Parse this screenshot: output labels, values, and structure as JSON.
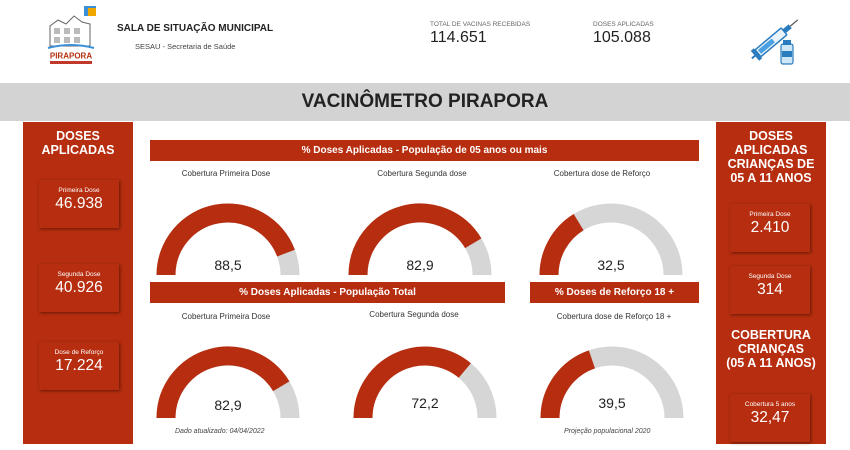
{
  "header": {
    "logo_text": "PIRAPORA",
    "org_title": "SALA DE SITUAÇÃO MUNICIPAL",
    "org_subtitle": "SESAU - Secretaria de Saúde",
    "kpis": [
      {
        "label": "TOTAL DE VACINAS RECEBIDAS",
        "value": "114.651"
      },
      {
        "label": "DOSES APLICADAS",
        "value": "105.088"
      }
    ],
    "icon": "syringe-vaccine-icon"
  },
  "banner": {
    "title": "VACINÔMETRO PIRAPORA"
  },
  "left_panel": {
    "title_line1": "DOSES",
    "title_line2": "APLICADAS",
    "cards": [
      {
        "label": "Primeira Dose",
        "value": "46.938"
      },
      {
        "label": "Segunda Dose",
        "value": "40.926"
      },
      {
        "label": "Dose de Reforço",
        "value": "17.224"
      }
    ]
  },
  "right_panel": {
    "title_lines": [
      "DOSES",
      "APLICADAS",
      "CRIANÇAS DE",
      "05 A 11 ANOS"
    ],
    "cards": [
      {
        "label": "Primeira Dose",
        "value": "2.410"
      },
      {
        "label": "Segunda Dose",
        "value": "314"
      }
    ],
    "coverage_title_lines": [
      "COBERTURA",
      "CRIANÇAS",
      "(05 A 11 ANOS)"
    ],
    "coverage_card": {
      "label": "Cobertura 5 anos",
      "value": "32,47"
    }
  },
  "section1": {
    "title": "% Doses Aplicadas - População de 05 anos ou mais",
    "gauges": [
      {
        "label": "Cobertura Primeira Dose",
        "value_text": "88,5",
        "percent": 88.5
      },
      {
        "label": "Cobertura Segunda dose",
        "value_text": "82,9",
        "percent": 82.9
      },
      {
        "label": "Cobertura dose de Reforço",
        "value_text": "32,5",
        "percent": 32.5
      }
    ]
  },
  "section2": {
    "title": "% Doses Aplicadas - População Total",
    "gauges": [
      {
        "label": "Cobertura Primeira Dose",
        "value_text": "82,9",
        "percent": 82.9
      },
      {
        "label": "Cobertura Segunda dose",
        "value_text": "72,2",
        "percent": 72.2
      }
    ]
  },
  "section3": {
    "title": "% Doses de Reforço 18 +",
    "gauges": [
      {
        "label": "Cobertura dose de Reforço 18 +",
        "value_text": "39,5",
        "percent": 39.5
      }
    ]
  },
  "notes": {
    "updated": "Dado atualizado: 04/04/2022",
    "projection": "Projeção populacional 2020"
  },
  "colors": {
    "accent": "#b62d0f",
    "gauge_track": "#d6d6d6",
    "banner": "#d3d3d3"
  }
}
